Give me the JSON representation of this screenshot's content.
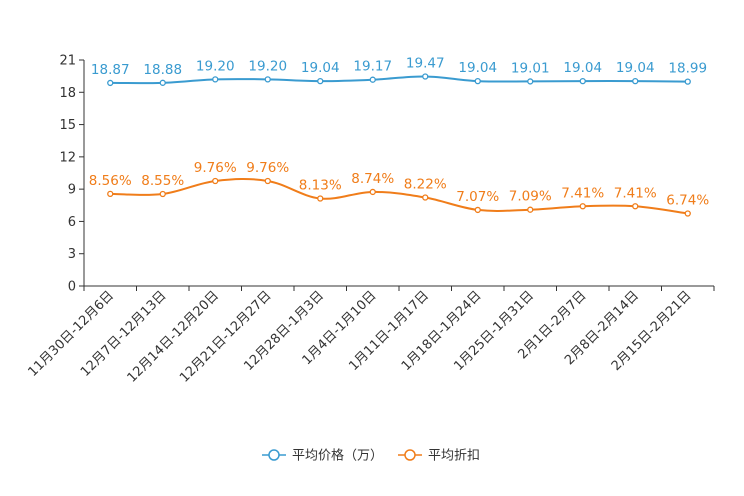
{
  "chart_data": {
    "type": "line",
    "title": "",
    "xlabel": "",
    "ylabel": "",
    "ylim": [
      0,
      21
    ],
    "yticks": [
      0,
      3,
      6,
      9,
      12,
      15,
      18,
      21
    ],
    "grid": false,
    "legend_position": "bottom-center",
    "categories": [
      "11月30日-12月6日",
      "12月7日-12月13日",
      "12月14日-12月20日",
      "12月21日-12月27日",
      "12月28日-1月3日",
      "1月4日-1月10日",
      "1月11日-1月17日",
      "1月18日-1月24日",
      "1月25日-1月31日",
      "2月1日-2月7日",
      "2月8日-2月14日",
      "2月15日-2月21日"
    ],
    "series": [
      {
        "name": "平均价格（万）",
        "color": "#3a9bd0",
        "values": [
          18.87,
          18.88,
          19.2,
          19.2,
          19.04,
          19.17,
          19.47,
          19.04,
          19.01,
          19.04,
          19.04,
          18.99
        ],
        "labels": [
          "18.87",
          "18.88",
          "19.20",
          "19.20",
          "19.04",
          "19.17",
          "19.47",
          "19.04",
          "19.01",
          "19.04",
          "19.04",
          "18.99"
        ]
      },
      {
        "name": "平均折扣",
        "color": "#f07d1a",
        "values": [
          8.56,
          8.55,
          9.76,
          9.76,
          8.13,
          8.74,
          8.22,
          7.07,
          7.09,
          7.41,
          7.41,
          6.74
        ],
        "labels": [
          "8.56%",
          "8.55%",
          "9.76%",
          "9.76%",
          "8.13%",
          "8.74%",
          "8.22%",
          "7.07%",
          "7.09%",
          "7.41%",
          "7.41%",
          "6.74%"
        ]
      }
    ]
  }
}
